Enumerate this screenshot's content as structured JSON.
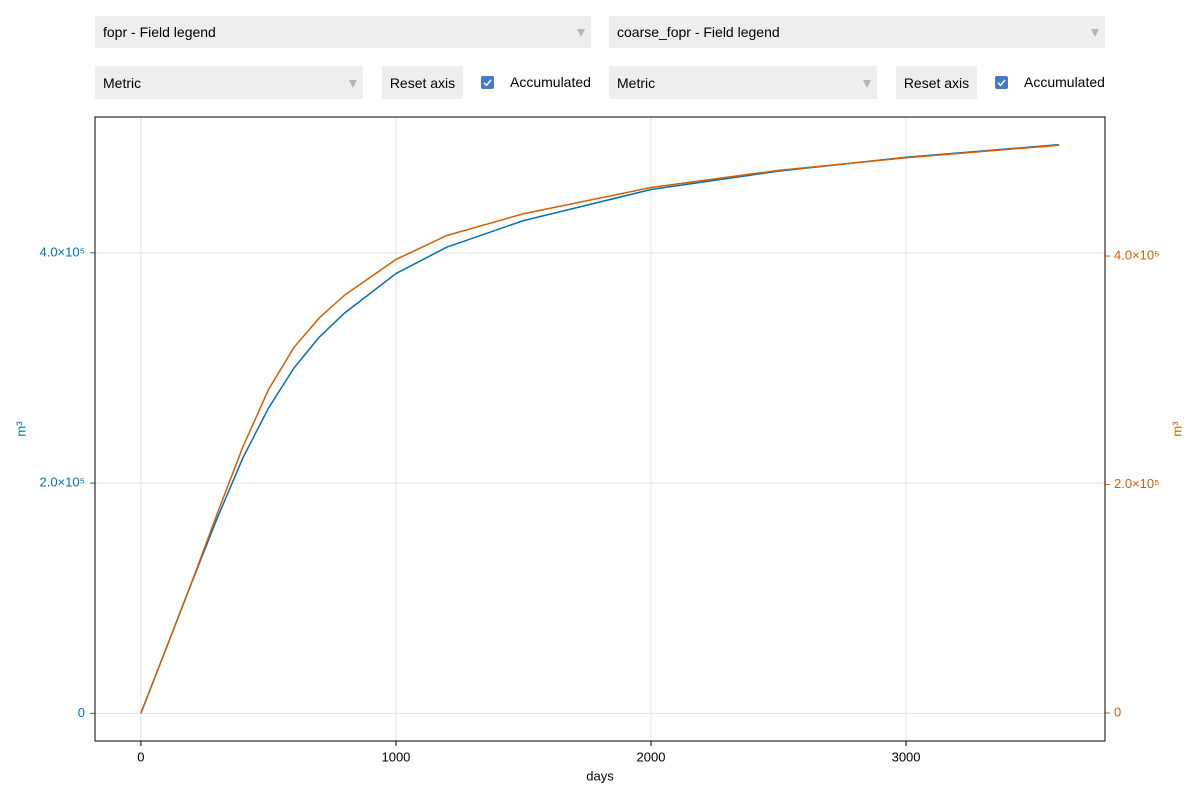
{
  "controls": {
    "left": {
      "field": "fopr - Field legend",
      "unit": "Metric",
      "reset": "Reset axis",
      "accumulated": {
        "label": "Accumulated",
        "checked": true
      }
    },
    "right": {
      "field": "coarse_fopr - Field legend",
      "unit": "Metric",
      "reset": "Reset axis",
      "accumulated": {
        "label": "Accumulated",
        "checked": true
      }
    }
  },
  "chart_data": {
    "type": "line",
    "xlabel": "days",
    "ylabel": "m³",
    "y2label": "m³",
    "x": [
      0,
      100,
      200,
      300,
      400,
      500,
      600,
      700,
      800,
      1000,
      1200,
      1500,
      2000,
      2500,
      3000,
      3600
    ],
    "xlim": [
      -180,
      3780
    ],
    "xticks": [
      0,
      1000,
      2000,
      3000
    ],
    "ylim": [
      -24000,
      518000
    ],
    "yticks": [
      0,
      {
        "value": 200000,
        "label": "2.0×10⁵"
      },
      {
        "value": 400000,
        "label": "4.0×10⁵"
      }
    ],
    "y2lim": [
      -24500,
      521700
    ],
    "y2ticks": [
      0,
      {
        "value": 200000,
        "label": "2.0×10⁵"
      },
      {
        "value": 400000,
        "label": "4.0×10⁵"
      }
    ],
    "grid": true,
    "series": [
      {
        "color": "#0072b2",
        "values": [
          0,
          57000,
          114000,
          170000,
          222000,
          265000,
          300000,
          327000,
          348000,
          382000,
          405000,
          428000,
          455000,
          471000,
          483000,
          494000
        ]
      },
      {
        "color": "#d55e00",
        "axis": "y2",
        "values": [
          0,
          57000,
          115000,
          175000,
          233000,
          283000,
          320000,
          346000,
          366000,
          397000,
          418000,
          437000,
          460000,
          475000,
          486000,
          497000
        ]
      }
    ]
  }
}
